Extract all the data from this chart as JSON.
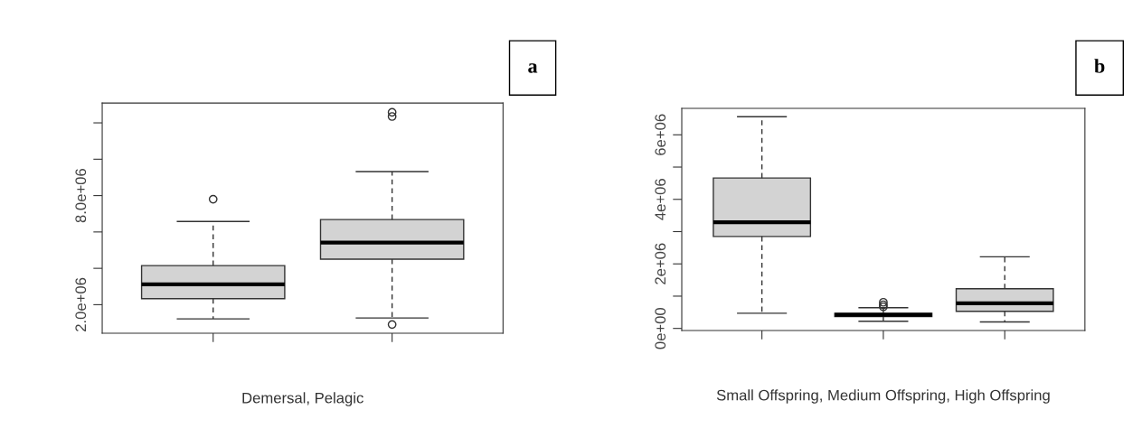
{
  "chart_data": [
    {
      "type": "box",
      "xlabel": "Demersal, Pelagic",
      "annotations": [
        "a"
      ],
      "categories": [
        null,
        null
      ],
      "tick_labels": "y",
      "ylim": [
        430000,
        13090000
      ],
      "yticks": [
        {
          "value": 2000000,
          "label": "2.0e+06"
        },
        {
          "value": 4000000,
          "label": null
        },
        {
          "value": 6000000,
          "label": null
        },
        {
          "value": 8000000,
          "label": "8.0e+06"
        },
        {
          "value": 10000000,
          "label": null
        },
        {
          "value": 12000000,
          "label": null
        }
      ],
      "series": [
        {
          "color": "#d3d3d3",
          "boxes": [
            {
              "low": 1220000,
              "q1": 2330000,
              "median": 3120000,
              "q3": 4150000,
              "high": 6580000,
              "outliers": [
                7800000
              ]
            },
            {
              "low": 1270000,
              "q1": 4500000,
              "median": 5420000,
              "q3": 6680000,
              "high": 9320000,
              "outliers": [
                12580000,
                12350000,
                910000
              ]
            }
          ]
        }
      ]
    },
    {
      "type": "box",
      "xlabel": "Small Offspring, Medium Offspring, High Offspring",
      "annotations": [
        "b"
      ],
      "categories": [
        null,
        null,
        null
      ],
      "tick_labels": "y",
      "ylim": [
        -65000,
        6820000
      ],
      "yticks": [
        {
          "value": 0,
          "label": "0e+00"
        },
        {
          "value": 1000000,
          "label": null
        },
        {
          "value": 2000000,
          "label": "2e+06"
        },
        {
          "value": 3000000,
          "label": null
        },
        {
          "value": 4000000,
          "label": "4e+06"
        },
        {
          "value": 5000000,
          "label": null
        },
        {
          "value": 6000000,
          "label": "6e+06"
        }
      ],
      "series": [
        {
          "color": "#d3d3d3",
          "boxes": [
            {
              "low": 470000,
              "q1": 2850000,
              "median": 3290000,
              "q3": 4660000,
              "high": 6560000
            },
            {
              "low": 220000,
              "q1": 370000,
              "median": 420000,
              "q3": 470000,
              "high": 640000,
              "outliers": [
                810000,
                730000,
                670000
              ]
            },
            {
              "low": 200000,
              "q1": 530000,
              "median": 780000,
              "q3": 1230000,
              "high": 2220000
            }
          ]
        }
      ]
    }
  ]
}
